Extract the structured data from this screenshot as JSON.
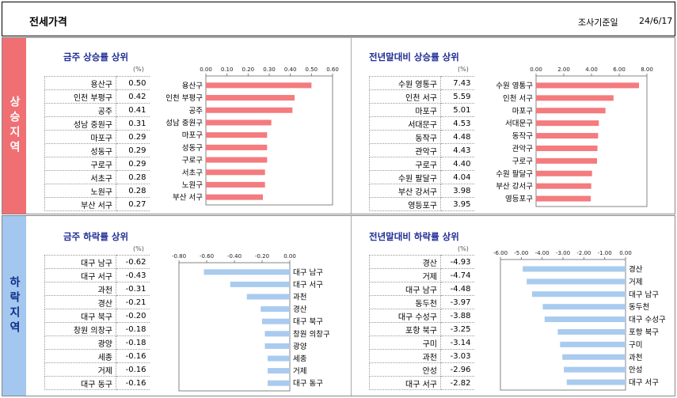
{
  "header": {
    "title": "전세가격",
    "date_label": "조사기준일",
    "date_value": "24/6/17"
  },
  "sections": {
    "up_label": "상승지역",
    "down_label": "하락지역"
  },
  "unit_label": "(%)",
  "chart_data": [
    {
      "type": "bar",
      "orientation": "horizontal",
      "title": "금주 상승률 상위",
      "categories": [
        "용산구",
        "인천 부평구",
        "공주",
        "성남 중원구",
        "마포구",
        "성동구",
        "구로구",
        "서초구",
        "노원구",
        "부산 서구"
      ],
      "values": [
        0.5,
        0.42,
        0.41,
        0.31,
        0.29,
        0.29,
        0.29,
        0.28,
        0.28,
        0.27
      ],
      "display_values": [
        "0.50",
        "0.42",
        "0.41",
        "0.31",
        "0.29",
        "0.29",
        "0.29",
        "0.28",
        "0.28",
        "0.27"
      ],
      "xlim": [
        0,
        0.6
      ],
      "ticks": [
        0,
        0.1,
        0.2,
        0.3,
        0.4,
        0.5,
        0.6
      ],
      "tick_labels": [
        "0.00",
        "0.10",
        "0.20",
        "0.30",
        "0.40",
        "0.50",
        "0.60"
      ],
      "color": "#f47b7e"
    },
    {
      "type": "bar",
      "orientation": "horizontal",
      "title": "전년말대비 상승률 상위",
      "categories": [
        "수원 영통구",
        "인천 서구",
        "마포구",
        "서대문구",
        "동작구",
        "관악구",
        "구로구",
        "수원 팔달구",
        "부산 강서구",
        "영등포구"
      ],
      "values": [
        7.43,
        5.59,
        5.01,
        4.53,
        4.48,
        4.43,
        4.4,
        4.04,
        3.98,
        3.95
      ],
      "display_values": [
        "7.43",
        "5.59",
        "5.01",
        "4.53",
        "4.48",
        "4.43",
        "4.40",
        "4.04",
        "3.98",
        "3.95"
      ],
      "xlim": [
        0,
        8
      ],
      "ticks": [
        0,
        2,
        4,
        6,
        8
      ],
      "tick_labels": [
        "0.00",
        "2.00",
        "4.00",
        "6.00",
        "8.00"
      ],
      "color": "#f47b7e"
    },
    {
      "type": "bar",
      "orientation": "horizontal",
      "title": "금주 하락률 상위",
      "categories": [
        "대구 남구",
        "대구 서구",
        "과천",
        "경산",
        "대구 북구",
        "창원 의창구",
        "광양",
        "세종",
        "거제",
        "대구 동구"
      ],
      "values": [
        -0.62,
        -0.43,
        -0.31,
        -0.21,
        -0.2,
        -0.18,
        -0.18,
        -0.16,
        -0.16,
        -0.16
      ],
      "display_values": [
        "-0.62",
        "-0.43",
        "-0.31",
        "-0.21",
        "-0.20",
        "-0.18",
        "-0.18",
        "-0.16",
        "-0.16",
        "-0.16"
      ],
      "xlim": [
        -0.8,
        0
      ],
      "ticks": [
        -0.8,
        -0.6,
        -0.4,
        -0.2,
        0
      ],
      "tick_labels": [
        "-0.80",
        "-0.60",
        "-0.40",
        "-0.20",
        "0.00"
      ],
      "color": "#a9cbef"
    },
    {
      "type": "bar",
      "orientation": "horizontal",
      "title": "전년말대비 하락률 상위",
      "categories": [
        "경산",
        "거제",
        "대구 남구",
        "동두천",
        "대구 수성구",
        "포항 북구",
        "구미",
        "과천",
        "안성",
        "대구 서구"
      ],
      "values": [
        -4.93,
        -4.74,
        -4.48,
        -3.97,
        -3.88,
        -3.25,
        -3.14,
        -3.03,
        -2.96,
        -2.82
      ],
      "display_values": [
        "-4.93",
        "-4.74",
        "-4.48",
        "-3.97",
        "-3.88",
        "-3.25",
        "-3.14",
        "-3.03",
        "-2.96",
        "-2.82"
      ],
      "xlim": [
        -6,
        0
      ],
      "ticks": [
        -6,
        -5,
        -4,
        -3,
        -2,
        -1,
        0
      ],
      "tick_labels": [
        "-6.00",
        "-5.00",
        "-4.00",
        "-3.00",
        "-2.00",
        "-1.00",
        "0.00"
      ],
      "color": "#a9cbef"
    }
  ]
}
